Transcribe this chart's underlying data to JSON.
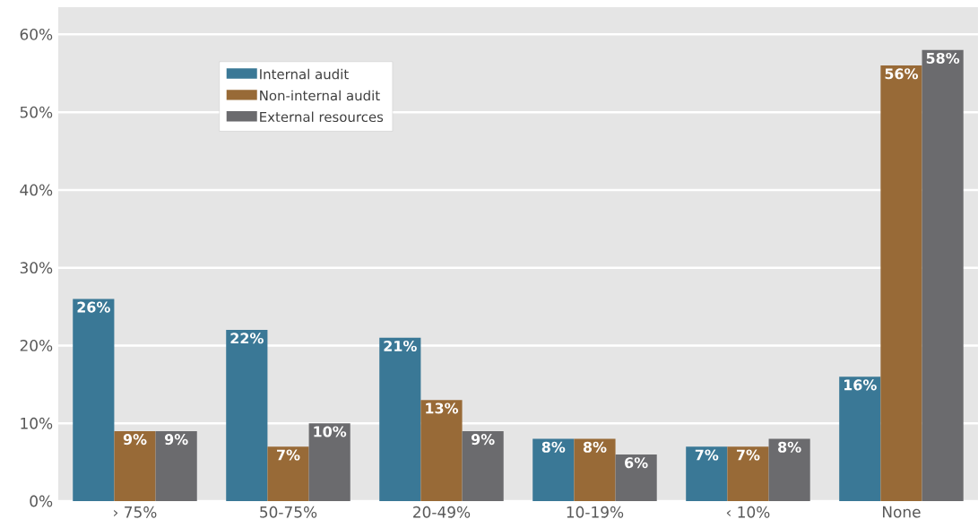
{
  "chart_data": {
    "type": "bar",
    "categories": [
      "› 75%",
      "50-75%",
      "20-49%",
      "10-19%",
      "‹ 10%",
      "None"
    ],
    "series": [
      {
        "name": "Internal audit",
        "color": "#3a7896",
        "values": [
          26,
          22,
          21,
          8,
          7,
          16
        ],
        "value_labels": [
          "26%",
          "22%",
          "21%",
          "8%",
          "7%",
          "16%"
        ]
      },
      {
        "name": "Non-internal audit",
        "color": "#986a37",
        "values": [
          9,
          7,
          13,
          8,
          7,
          56
        ],
        "value_labels": [
          "9%",
          "7%",
          "13%",
          "8%",
          "7%",
          "56%"
        ]
      },
      {
        "name": "External resources",
        "color": "#6b6b6e",
        "values": [
          9,
          10,
          9,
          6,
          8,
          58
        ],
        "value_labels": [
          "9%",
          "10%",
          "9%",
          "6%",
          "8%",
          "58%"
        ]
      }
    ],
    "ylim": [
      0,
      63.5
    ],
    "yticks": [
      {
        "value": 0,
        "label": "0%"
      },
      {
        "value": 10,
        "label": "10%"
      },
      {
        "value": 20,
        "label": "20%"
      },
      {
        "value": 30,
        "label": "30%"
      },
      {
        "value": 40,
        "label": "40%"
      },
      {
        "value": 50,
        "label": "50%"
      },
      {
        "value": 60,
        "label": "60%"
      }
    ],
    "grid": "y",
    "legend": "top left"
  }
}
